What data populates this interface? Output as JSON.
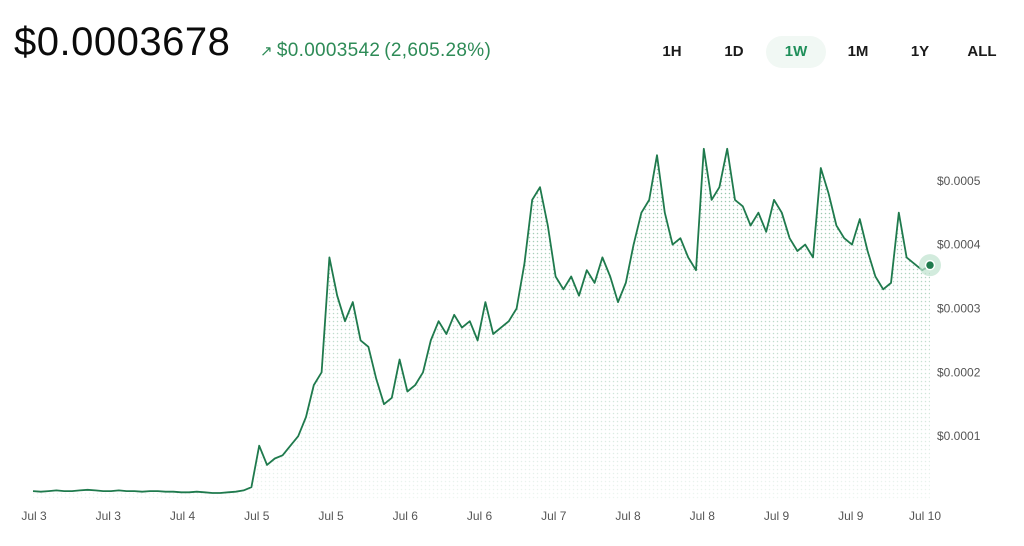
{
  "header": {
    "price": "$0.0003678",
    "change_arrow": "↗",
    "change_value": "$0.0003542",
    "change_percent": "(2,605.28%)"
  },
  "ranges": [
    {
      "label": "1H",
      "active": false
    },
    {
      "label": "1D",
      "active": false
    },
    {
      "label": "1W",
      "active": true
    },
    {
      "label": "1M",
      "active": false
    },
    {
      "label": "1Y",
      "active": false
    },
    {
      "label": "ALL",
      "active": false
    }
  ],
  "colors": {
    "line": "#1f7a4d",
    "accent": "#2e8b57",
    "dot_halo": "#bfe3cf"
  },
  "chart_data": {
    "type": "area",
    "title": "",
    "xlabel": "",
    "ylabel": "",
    "x_tick_labels": [
      "Jul 3",
      "Jul 3",
      "Jul 4",
      "Jul 5",
      "Jul 5",
      "Jul 6",
      "Jul 6",
      "Jul 7",
      "Jul 8",
      "Jul 8",
      "Jul 9",
      "Jul 9",
      "Jul 10"
    ],
    "y_tick_labels": [
      "$0.0001",
      "$0.0002",
      "$0.0003",
      "$0.0004",
      "$0.0005"
    ],
    "y_tick_values": [
      0.0001,
      0.0002,
      0.0003,
      0.0004,
      0.0005
    ],
    "ylim": [
      0.0,
      0.00052
    ],
    "grid": false,
    "series": [
      {
        "values": [
          1.4e-05,
          1.3e-05,
          1.4e-05,
          1.5e-05,
          1.4e-05,
          1.4e-05,
          1.5e-05,
          1.6e-05,
          1.5e-05,
          1.4e-05,
          1.4e-05,
          1.5e-05,
          1.4e-05,
          1.4e-05,
          1.3e-05,
          1.4e-05,
          1.4e-05,
          1.3e-05,
          1.3e-05,
          1.2e-05,
          1.2e-05,
          1.3e-05,
          1.2e-05,
          1.1e-05,
          1.1e-05,
          1.2e-05,
          1.3e-05,
          1.5e-05,
          2e-05,
          8.5e-05,
          5.5e-05,
          6.5e-05,
          7e-05,
          8.5e-05,
          0.0001,
          0.00013,
          0.00018,
          0.0002,
          0.00038,
          0.00032,
          0.00028,
          0.00031,
          0.00025,
          0.00024,
          0.00019,
          0.00015,
          0.00016,
          0.00022,
          0.00017,
          0.00018,
          0.0002,
          0.00025,
          0.00028,
          0.00026,
          0.00029,
          0.00027,
          0.00028,
          0.00025,
          0.00031,
          0.00026,
          0.00027,
          0.00028,
          0.0003,
          0.00037,
          0.00047,
          0.00049,
          0.00043,
          0.00035,
          0.00033,
          0.00035,
          0.00032,
          0.00036,
          0.00034,
          0.00038,
          0.00035,
          0.00031,
          0.00034,
          0.0004,
          0.00045,
          0.00047,
          0.00054,
          0.00045,
          0.0004,
          0.00041,
          0.00038,
          0.00036,
          0.00055,
          0.00047,
          0.00049,
          0.00055,
          0.00047,
          0.00046,
          0.00043,
          0.00045,
          0.00042,
          0.00047,
          0.00045,
          0.00041,
          0.00039,
          0.0004,
          0.00038,
          0.00052,
          0.00048,
          0.00043,
          0.00041,
          0.0004,
          0.00044,
          0.00039,
          0.00035,
          0.00033,
          0.00034,
          0.00045,
          0.00038,
          0.00037,
          0.00036,
          0.0003678
        ]
      }
    ],
    "last_value": 0.0003678
  }
}
